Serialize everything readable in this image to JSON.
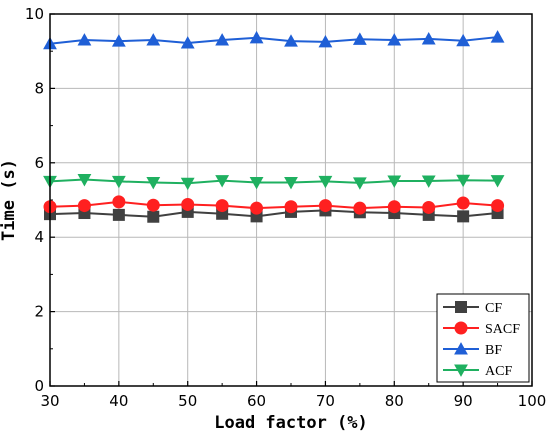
{
  "chart_data": {
    "type": "line",
    "xlabel": "Load factor (%)",
    "ylabel": "Time (s)",
    "xlim": [
      30,
      100
    ],
    "ylim": [
      0,
      10
    ],
    "x_ticks": [
      30,
      40,
      50,
      60,
      70,
      80,
      90,
      100
    ],
    "y_ticks": [
      0,
      2,
      4,
      6,
      8,
      10
    ],
    "grid": true,
    "legend_position": "bottom-right",
    "x": [
      30,
      35,
      40,
      45,
      50,
      55,
      60,
      65,
      70,
      75,
      80,
      85,
      90,
      95
    ],
    "series": [
      {
        "name": "CF",
        "color": "#404040",
        "marker": "square",
        "values": [
          4.62,
          4.65,
          4.6,
          4.55,
          4.68,
          4.63,
          4.56,
          4.68,
          4.72,
          4.67,
          4.65,
          4.6,
          4.56,
          4.65
        ]
      },
      {
        "name": "SACF",
        "color": "#ff2020",
        "marker": "circle",
        "values": [
          4.82,
          4.85,
          4.95,
          4.86,
          4.88,
          4.85,
          4.78,
          4.82,
          4.85,
          4.78,
          4.82,
          4.8,
          4.92,
          4.85
        ]
      },
      {
        "name": "BF",
        "color": "#1f5fd6",
        "marker": "triangle-up",
        "values": [
          9.2,
          9.3,
          9.27,
          9.3,
          9.22,
          9.3,
          9.36,
          9.27,
          9.25,
          9.32,
          9.3,
          9.33,
          9.28,
          9.38
        ]
      },
      {
        "name": "ACF",
        "color": "#1fb060",
        "marker": "triangle-down",
        "values": [
          5.5,
          5.55,
          5.5,
          5.47,
          5.45,
          5.52,
          5.47,
          5.47,
          5.5,
          5.46,
          5.51,
          5.51,
          5.53,
          5.52
        ]
      }
    ]
  }
}
